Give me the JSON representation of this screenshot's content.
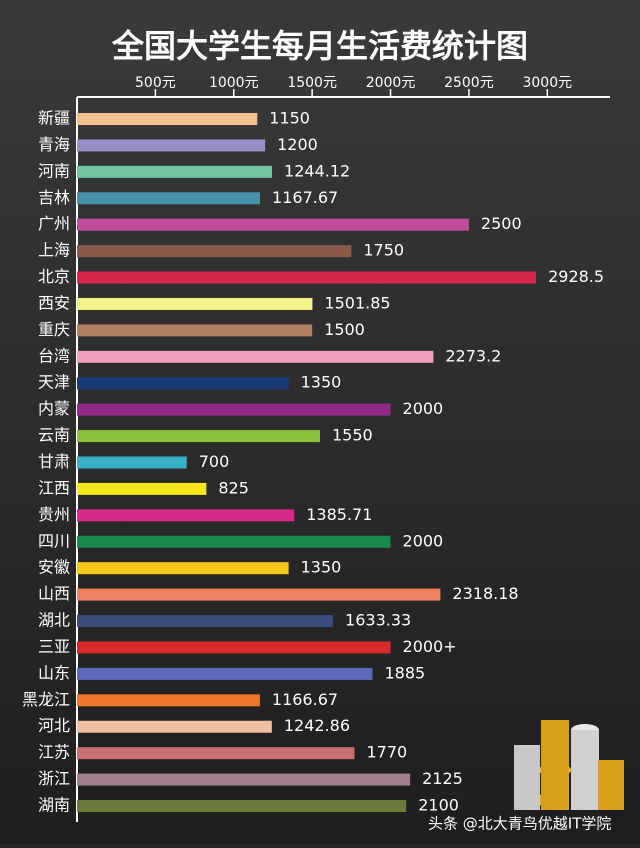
{
  "chart_data": {
    "type": "bar",
    "orientation": "horizontal",
    "title": "全国大学生每月生活费统计图",
    "categories": [
      "新疆",
      "青海",
      "河南",
      "吉林",
      "广州",
      "上海",
      "北京",
      "西安",
      "重庆",
      "台湾",
      "天津",
      "内蒙",
      "云南",
      "甘肃",
      "江西",
      "贵州",
      "四川",
      "安徽",
      "山西",
      "湖北",
      "三亚",
      "山东",
      "黑龙江",
      "河北",
      "江苏",
      "浙江",
      "湖南"
    ],
    "values": [
      1150,
      1200,
      1244.12,
      1167.67,
      2500,
      1750,
      2928.5,
      1501.85,
      1500,
      2273.2,
      1350,
      2000,
      1550,
      700,
      825,
      1385.71,
      2000,
      1350,
      2318.18,
      1633.33,
      2000,
      1885,
      1166.67,
      1242.86,
      1770,
      2125,
      2100
    ],
    "value_labels": [
      "1150",
      "1200",
      "1244.12",
      "1167.67",
      "2500",
      "1750",
      "2928.5",
      "1501.85",
      "1500",
      "2273.2",
      "1350",
      "2000",
      "1550",
      "700",
      "825",
      "1385.71",
      "2000",
      "1350",
      "2318.18",
      "1633.33",
      "2000+",
      "1885",
      "1166.67",
      "1242.86",
      "1770",
      "2125",
      "2100"
    ],
    "colors": [
      "#f4c28f",
      "#9b8fc8",
      "#6fc6a0",
      "#4a8fa8",
      "#c04f9a",
      "#8a5a4a",
      "#d8284a",
      "#f8f08a",
      "#b08060",
      "#f0a0c0",
      "#1a3a7a",
      "#902a8a",
      "#8ac03a",
      "#3ab0c8",
      "#f8e81a",
      "#d8288a",
      "#1a8a4a",
      "#f8c81a",
      "#f08060",
      "#3a4a7a",
      "#d82a2a",
      "#5a6ab8",
      "#f0782a",
      "#f0c0a0",
      "#c87070",
      "#a08090",
      "#6a7a3a"
    ],
    "xlim": [
      0,
      3400
    ],
    "xticks": [
      {
        "value": 500,
        "label": "500元"
      },
      {
        "value": 1000,
        "label": "1000元"
      },
      {
        "value": 1500,
        "label": "1500元"
      },
      {
        "value": 2000,
        "label": "2000元"
      },
      {
        "value": 2500,
        "label": "2500元"
      },
      {
        "value": 3000,
        "label": "3000元"
      }
    ],
    "watermark": "头条 @北大青鸟优越IT学院"
  }
}
